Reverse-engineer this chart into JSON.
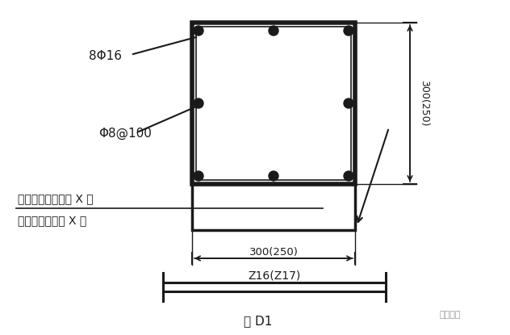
{
  "bg_color": "#ffffff",
  "line_color": "#1a1a1a",
  "text_color": "#1a1a1a",
  "label_8phi16": "8Φ16",
  "label_phi8at100": "Φ8@100",
  "label_see1": "见设计变更通知单 X 号",
  "label_see2": "或工程洽商记录 X 号",
  "label_300_250_h": "300(250)",
  "label_300_250_w": "300(250)",
  "label_z16z17": "Z16(Z17)",
  "label_fig": "图 D1",
  "label_watermark": "豆丁施工"
}
